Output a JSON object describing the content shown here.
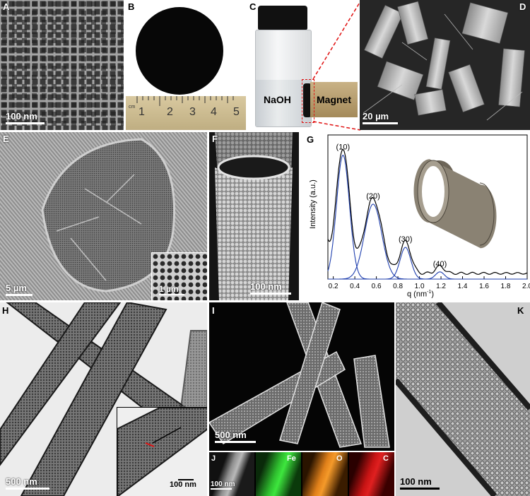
{
  "panels": {
    "A": {
      "label": "A",
      "scale_bar": "100 nm"
    },
    "B": {
      "label": "B",
      "ruler_unit": "cm",
      "ruler_numbers": [
        "1",
        "2",
        "3",
        "4",
        "5"
      ]
    },
    "C": {
      "label": "C",
      "text_left": "NaOH",
      "text_right": "Magnet"
    },
    "D": {
      "label": "D",
      "scale_bar": "20 µm"
    },
    "E": {
      "label": "E",
      "scale_bar": "5 µm",
      "inset_scale_bar": "1 µm"
    },
    "F": {
      "label": "F",
      "scale_bar": "100 nm"
    },
    "G": {
      "label": "G"
    },
    "H": {
      "label": "H",
      "scale_bar": "500 nm",
      "inset_scale_bar": "100 nm"
    },
    "I": {
      "label": "I",
      "scale_bar": "500 nm"
    },
    "J": {
      "label": "J",
      "scale_bar": "100 nm",
      "maps": [
        "Fe",
        "O",
        "C"
      ]
    },
    "K": {
      "label": "K",
      "scale_bar": "100 nm"
    }
  },
  "chart_data": {
    "type": "line",
    "xlabel": "q (nm",
    "xlabel_sup": "-1",
    "xlabel_end": ")",
    "ylabel": "Intensity (a.u.)",
    "xlim": [
      0.15,
      2.0
    ],
    "xticks": [
      "0.2",
      "0.4",
      "0.6",
      "0.8",
      "1.0",
      "1.2",
      "1.4",
      "1.6",
      "1.8",
      "2.0"
    ],
    "peaks": [
      {
        "label": "(10)",
        "q": 0.29,
        "height": 0.86,
        "width": 0.06
      },
      {
        "label": "(20)",
        "q": 0.57,
        "height": 0.52,
        "width": 0.08
      },
      {
        "label": "(30)",
        "q": 0.87,
        "height": 0.22,
        "width": 0.05
      },
      {
        "label": "(40)",
        "q": 1.19,
        "height": 0.05,
        "width": 0.04
      }
    ],
    "colors": {
      "fit": "#1f3fae",
      "data": "#000000"
    }
  }
}
